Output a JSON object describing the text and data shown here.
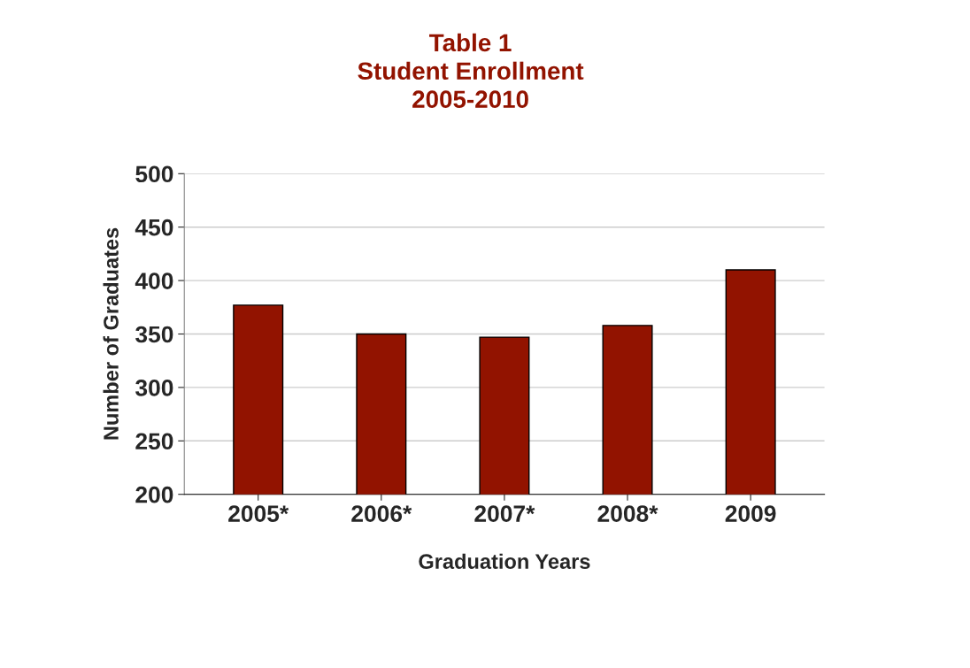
{
  "chart_data": {
    "type": "bar",
    "title": "Table 1\nStudent Enrollment\n2005-2010",
    "categories": [
      "2005*",
      "2006*",
      "2007*",
      "2008*",
      "2009"
    ],
    "values": [
      377,
      350,
      347,
      358,
      410
    ],
    "color": "#921300",
    "xlabel": "Graduation Years",
    "ylabel": "Number of Graduates",
    "ylim": [
      200,
      500
    ],
    "yticks": [
      200,
      250,
      300,
      350,
      400,
      450,
      500
    ],
    "grid": "y"
  }
}
